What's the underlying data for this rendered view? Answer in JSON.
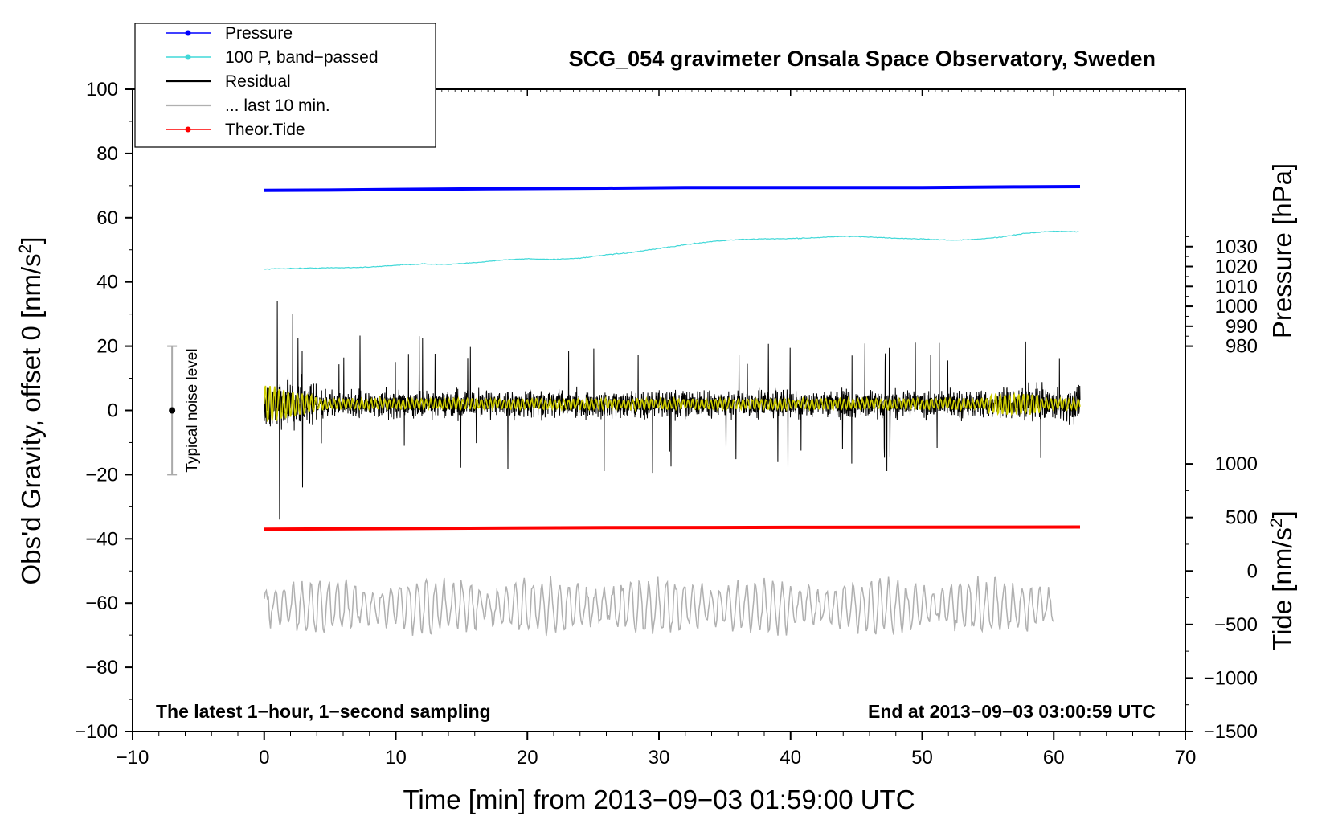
{
  "chart_data": {
    "type": "line",
    "title": "SCG_054 gravimeter Onsala Space Observatory, Sweden",
    "xlabel": "Time [min] from 2013-09-03 01:59:00 UTC",
    "ylabel": "Obs'd Gravity, offset 0 [nm/s²]",
    "ylabel_text": "Obs'd Gravity, offset 0 [nm/s",
    "ylabel_sup": "2",
    "ylabel_tail": "]",
    "xlim": [
      -10,
      70
    ],
    "ylim": [
      -100,
      100
    ],
    "xticks": [
      -10,
      0,
      10,
      20,
      30,
      40,
      50,
      60,
      70
    ],
    "xtick_labels": [
      "−10",
      "0",
      "10",
      "20",
      "30",
      "40",
      "50",
      "60",
      "70"
    ],
    "yticks": [
      -100,
      -80,
      -60,
      -40,
      -20,
      0,
      20,
      40,
      60,
      80,
      100
    ],
    "ytick_labels": [
      "−100",
      "−80",
      "−60",
      "−40",
      "−20",
      "0",
      "20",
      "40",
      "60",
      "80",
      "100"
    ],
    "pressure_axis": {
      "label": "Pressure [hPa]",
      "ticks": [
        980,
        990,
        1000,
        1010,
        1020,
        1030
      ],
      "tick_labels": [
        "980",
        "990",
        "1000",
        "1010",
        "1020",
        "1030"
      ],
      "gravity_at_980": 20,
      "gravity_per_hpa": 0.62
    },
    "tide_axis": {
      "label_text": "Tide [nm/s",
      "label_sup": "2",
      "label_tail": "]",
      "ticks": [
        1000,
        500,
        0,
        -500,
        -1000,
        -1500
      ],
      "tick_labels": [
        "1000",
        "500",
        "0",
        "−500",
        "−1000",
        "−1500"
      ],
      "gravity_at_0": -50,
      "gravity_per_unit": 0.03333
    },
    "series": [
      {
        "name": "Pressure",
        "color": "#0000ff",
        "style": "thick",
        "x": [
          0,
          5,
          10,
          17,
          26,
          32,
          40,
          50,
          57,
          62
        ],
        "y": [
          68.5,
          68.6,
          68.8,
          69.0,
          69.2,
          69.4,
          69.4,
          69.4,
          69.6,
          69.7
        ]
      },
      {
        "name": "100 P, band-passed",
        "color": "#40d8d8",
        "style": "thin",
        "x": [
          0,
          2,
          5,
          8,
          10,
          12,
          14,
          16,
          18,
          20,
          22,
          24,
          26,
          28,
          30,
          32,
          34,
          36,
          38,
          40,
          42,
          44,
          46,
          48,
          50,
          52,
          54,
          56,
          58,
          60,
          62
        ],
        "y": [
          44.0,
          44.2,
          44.4,
          44.6,
          45.2,
          45.6,
          45.4,
          46.0,
          46.8,
          47.2,
          47.0,
          47.4,
          48.4,
          49.2,
          50.4,
          51.6,
          52.6,
          53.2,
          53.4,
          53.5,
          53.8,
          54.2,
          54.0,
          53.6,
          53.4,
          53.0,
          53.2,
          54.0,
          55.2,
          55.8,
          55.6
        ]
      },
      {
        "name": "Residual",
        "color": "#000000",
        "style": "noise",
        "x_start": 0,
        "x_end": 62,
        "center": 2,
        "amplitude": 9
      },
      {
        "name": "... last 10 min.",
        "color": "#b0b0b0",
        "style": "oscillation",
        "x_start": 0,
        "x_end": 60,
        "center": -61,
        "amplitude": 7
      },
      {
        "name": "Theor.Tide",
        "color": "#ff0000",
        "style": "thick",
        "x": [
          0,
          5,
          14,
          26,
          40,
          62
        ],
        "y": [
          -37.0,
          -36.9,
          -36.7,
          -36.5,
          -36.4,
          -36.3
        ]
      },
      {
        "name": "Smoothed residual",
        "color": "#cccc00",
        "style": "smooth",
        "x_start": 0,
        "x_end": 62,
        "center": 2,
        "amplitude": 1.5
      }
    ],
    "legend": [
      {
        "label": "Pressure",
        "color": "#0000ff",
        "marker": true
      },
      {
        "label": "100 P, band−passed",
        "color": "#40d8d8",
        "marker": true
      },
      {
        "label": "Residual",
        "color": "#000000",
        "marker": false
      },
      {
        "label": "... last 10 min.",
        "color": "#b0b0b0",
        "marker": false
      },
      {
        "label": "Theor.Tide",
        "color": "#ff0000",
        "marker": true
      }
    ],
    "legend_position": "top-left",
    "noise_indicator": {
      "label": "Typical noise level",
      "x": -7,
      "center": 0,
      "low": -20,
      "high": 20
    },
    "annotations": {
      "bottom_left": "The latest 1−hour, 1−second sampling",
      "bottom_right": "End at 2013−09−03 03:00:59 UTC"
    },
    "xlabel_display": "Time [min] from 2013−09−03 01:59:00 UTC",
    "pressure_label": "Pressure [hPa]"
  }
}
